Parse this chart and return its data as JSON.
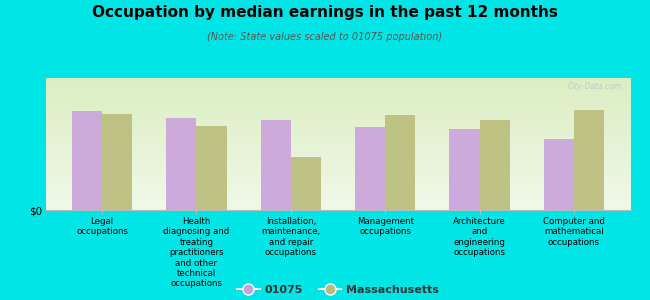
{
  "title": "Occupation by median earnings in the past 12 months",
  "subtitle": "(Note: State values scaled to 01075 population)",
  "categories": [
    "Legal\noccupations",
    "Health\ndiagnosing and\ntreating\npractitioners\nand other\ntechnical\noccupations",
    "Installation,\nmaintenance,\nand repair\noccupations",
    "Management\noccupations",
    "Architecture\nand\nengineering\noccupations",
    "Computer and\nmathematical\noccupations"
  ],
  "values_01075": [
    0.75,
    0.7,
    0.68,
    0.63,
    0.61,
    0.54
  ],
  "values_mass": [
    0.73,
    0.64,
    0.4,
    0.72,
    0.68,
    0.76
  ],
  "color_01075": "#c9a0dc",
  "color_mass": "#b8bc78",
  "background_color": "#00e5e5",
  "ylabel": "$0",
  "legend_01075": "01075",
  "legend_mass": "Massachusetts",
  "bar_width": 0.32,
  "ylim": [
    0,
    1.0
  ],
  "watermark": "City-Data.com"
}
